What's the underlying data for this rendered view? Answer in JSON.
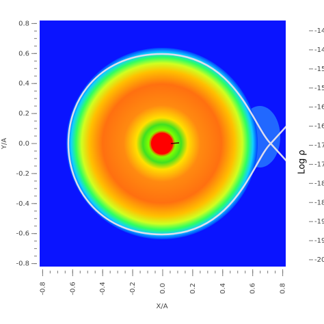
{
  "chart_data": {
    "type": "heatmap",
    "xlabel": "X/A",
    "ylabel": "Y/A",
    "xlim": [
      -0.82,
      0.82
    ],
    "ylim": [
      -0.82,
      0.82
    ],
    "xticks": [
      -0.8,
      -0.6,
      -0.4,
      -0.2,
      {
        "value": 0,
        "label": "0.0"
      },
      0.2,
      0.4,
      0.6,
      0.8
    ],
    "yticks": [
      -0.8,
      -0.6,
      -0.4,
      -0.2,
      {
        "value": 0,
        "label": "0.0"
      },
      0.2,
      0.4,
      0.6,
      0.8
    ],
    "colorbar": {
      "label": "Log ρ",
      "lim": [
        -20,
        -14
      ],
      "ticks": [
        {
          "value": -14,
          "label": "-14"
        },
        {
          "value": -14.5,
          "label": "-14"
        },
        {
          "value": -15,
          "label": "-15"
        },
        {
          "value": -15.5,
          "label": "-15"
        },
        {
          "value": -16,
          "label": "-16"
        },
        {
          "value": -16.5,
          "label": "-16"
        },
        {
          "value": -17,
          "label": "-17"
        },
        {
          "value": -17.5,
          "label": "-17"
        },
        {
          "value": -18,
          "label": "-18"
        },
        {
          "value": -18.5,
          "label": "-18"
        },
        {
          "value": -19,
          "label": "-19"
        },
        {
          "value": -19.5,
          "label": "-19"
        },
        {
          "value": -20,
          "label": "-20"
        }
      ]
    }
  }
}
